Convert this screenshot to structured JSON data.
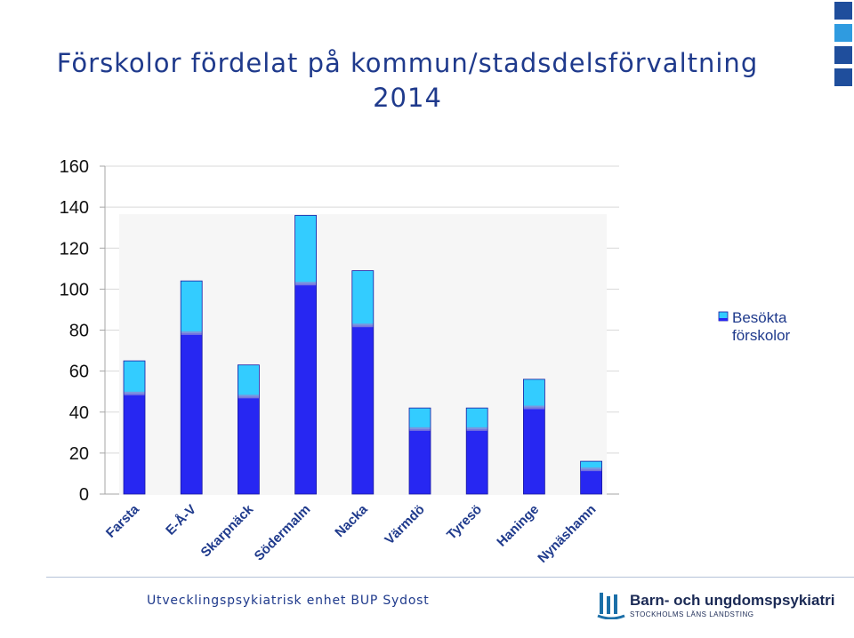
{
  "slide": {
    "title_line1": "Förskolor fördelat på kommun/stadsdelsförvaltning",
    "title_line2": "2014",
    "footer_text": "Utvecklingspsykiatrisk enhet BUP Sydost",
    "logo_name": "Barn- och ungdomspsykiatri",
    "logo_subtitle": "STOCKHOLMS LÄNS LANDSTING",
    "logo_icon": "sll-logo-icon"
  },
  "colors": {
    "title": "#1f3a8c",
    "bar_body": "#2727f2",
    "bar_top": "#33ccff",
    "grid": "#d9d9d9"
  },
  "chart_data": {
    "type": "bar",
    "categories": [
      "Farsta",
      "E-Å-V",
      "Skarpnäck",
      "Södermalm",
      "Nacka",
      "Värmdö",
      "Tyresö",
      "Haninge",
      "Nynäshamn"
    ],
    "series": [
      {
        "name": "Besökta förskolor",
        "values": [
          65,
          104,
          63,
          136,
          109,
          42,
          42,
          56,
          16
        ]
      }
    ],
    "ylim": [
      0,
      160
    ],
    "yticks": [
      0,
      20,
      40,
      60,
      80,
      100,
      120,
      140,
      160
    ],
    "grid": true,
    "legend": "right",
    "xlabel": "",
    "ylabel": ""
  }
}
